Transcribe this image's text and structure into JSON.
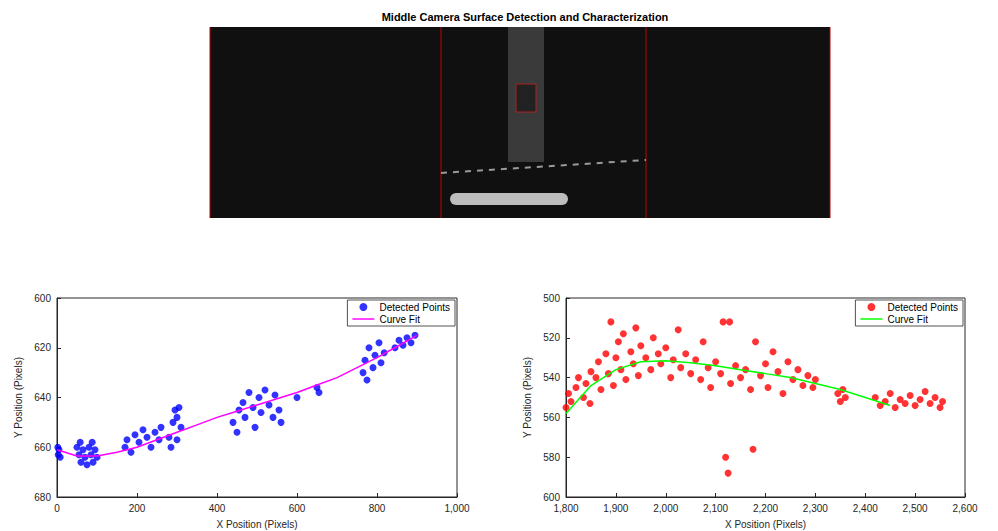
{
  "title": "Middle Camera Surface Detection and Characterization",
  "chart_data": [
    {
      "type": "scatter",
      "xlabel": "X Position (Pixels)",
      "ylabel": "Y Position (Pixels)",
      "xlim": [
        0,
        1000
      ],
      "xticks": [
        0,
        200,
        400,
        600,
        800,
        1000
      ],
      "ylim": [
        680,
        600
      ],
      "yticks": [
        600,
        620,
        640,
        660,
        680
      ],
      "grid": false,
      "legend": "upper right",
      "series": [
        {
          "name": "Detected Points",
          "type": "scatter",
          "marker": "circle",
          "color": "#0000ff",
          "x": [
            2,
            3,
            5,
            8,
            50,
            55,
            60,
            65,
            70,
            75,
            80,
            85,
            90,
            95,
            100,
            58,
            88,
            170,
            175,
            185,
            195,
            205,
            215,
            225,
            235,
            245,
            255,
            260,
            280,
            285,
            290,
            295,
            300,
            305,
            310,
            300,
            440,
            450,
            455,
            465,
            470,
            480,
            490,
            495,
            505,
            510,
            520,
            530,
            540,
            545,
            555,
            560,
            600,
            650,
            655,
            765,
            770,
            775,
            780,
            790,
            795,
            805,
            810,
            818,
            845,
            855,
            865,
            875,
            885,
            895
          ],
          "values": [
            660,
            663,
            661,
            664,
            660,
            663,
            666,
            661,
            664,
            667,
            660,
            663,
            666,
            661,
            664,
            658,
            658,
            660,
            657,
            662,
            655,
            658,
            653,
            656,
            660,
            654,
            657,
            652,
            656,
            660,
            650,
            645,
            648,
            644,
            652,
            657,
            650,
            654,
            645,
            642,
            648,
            638,
            644,
            652,
            640,
            646,
            637,
            643,
            648,
            639,
            645,
            650,
            640,
            636,
            638,
            630,
            625,
            633,
            620,
            628,
            623,
            618,
            626,
            622,
            620,
            617,
            619,
            616,
            618,
            615
          ]
        },
        {
          "name": "Curve Fit",
          "type": "line",
          "line_style": "solid",
          "color": "#ff00ff",
          "x": [
            0,
            50,
            100,
            150,
            200,
            250,
            300,
            350,
            400,
            450,
            500,
            550,
            600,
            650,
            700,
            750,
            800,
            850,
            900
          ],
          "values": [
            661,
            663.5,
            663.5,
            662,
            660,
            657,
            654,
            651,
            648,
            645.5,
            643,
            640.5,
            638,
            635,
            632,
            628,
            624,
            619.5,
            615
          ]
        }
      ]
    },
    {
      "type": "scatter",
      "xlabel": "X Position (Pixels)",
      "ylabel": "Y Position (Pixels)",
      "xlim": [
        1800,
        2600
      ],
      "xticks": [
        1800,
        1900,
        2000,
        2100,
        2200,
        2300,
        2400,
        2500,
        2600
      ],
      "ylim": [
        600,
        500
      ],
      "yticks": [
        500,
        520,
        540,
        560,
        580,
        600
      ],
      "grid": false,
      "legend": "upper right",
      "series": [
        {
          "name": "Detected Points",
          "type": "scatter",
          "marker": "circle",
          "color": "#ff0000",
          "x": [
            1800,
            1805,
            1810,
            1820,
            1825,
            1835,
            1840,
            1850,
            1848,
            1860,
            1865,
            1870,
            1880,
            1885,
            1890,
            1895,
            1900,
            1905,
            1910,
            1915,
            1920,
            1930,
            1935,
            1940,
            1945,
            1950,
            1960,
            1970,
            1975,
            1985,
            1990,
            2000,
            2010,
            2015,
            2025,
            2030,
            2040,
            2050,
            2060,
            2070,
            2075,
            2085,
            2090,
            2100,
            2110,
            2115,
            2120,
            2125,
            2128,
            2130,
            2140,
            2150,
            2160,
            2170,
            2175,
            2180,
            2190,
            2200,
            2205,
            2215,
            2225,
            2235,
            2245,
            2255,
            2265,
            2275,
            2285,
            2295,
            2300,
            2345,
            2350,
            2355,
            2360,
            2420,
            2430,
            2440,
            2450,
            2460,
            2470,
            2480,
            2490,
            2500,
            2510,
            2520,
            2530,
            2540,
            2550,
            2555
          ],
          "values": [
            555,
            548,
            552,
            545,
            540,
            550,
            543,
            537,
            553,
            540,
            532,
            546,
            528,
            538,
            512,
            544,
            530,
            522,
            536,
            518,
            541,
            527,
            533,
            515,
            539,
            524,
            530,
            536,
            520,
            528,
            533,
            525,
            540,
            531,
            516,
            535,
            528,
            538,
            531,
            541,
            522,
            535,
            545,
            532,
            538,
            512,
            580,
            588,
            512,
            543,
            534,
            540,
            536,
            546,
            576,
            522,
            539,
            533,
            545,
            527,
            537,
            548,
            532,
            541,
            536,
            544,
            539,
            545,
            541,
            548,
            552,
            546,
            550,
            550,
            554,
            552,
            548,
            555,
            551,
            553,
            549,
            554,
            551,
            547,
            553,
            550,
            555,
            552
          ]
        },
        {
          "name": "Curve Fit",
          "type": "line",
          "line_style": "solid",
          "color": "#00ff00",
          "x": [
            1800,
            1850,
            1900,
            1950,
            2000,
            2050,
            2100,
            2150,
            2200,
            2250,
            2300,
            2350,
            2400,
            2450
          ],
          "values": [
            558,
            544,
            536,
            532,
            531.5,
            532.5,
            534,
            536,
            538,
            540,
            543,
            546,
            550,
            554
          ]
        }
      ]
    }
  ]
}
